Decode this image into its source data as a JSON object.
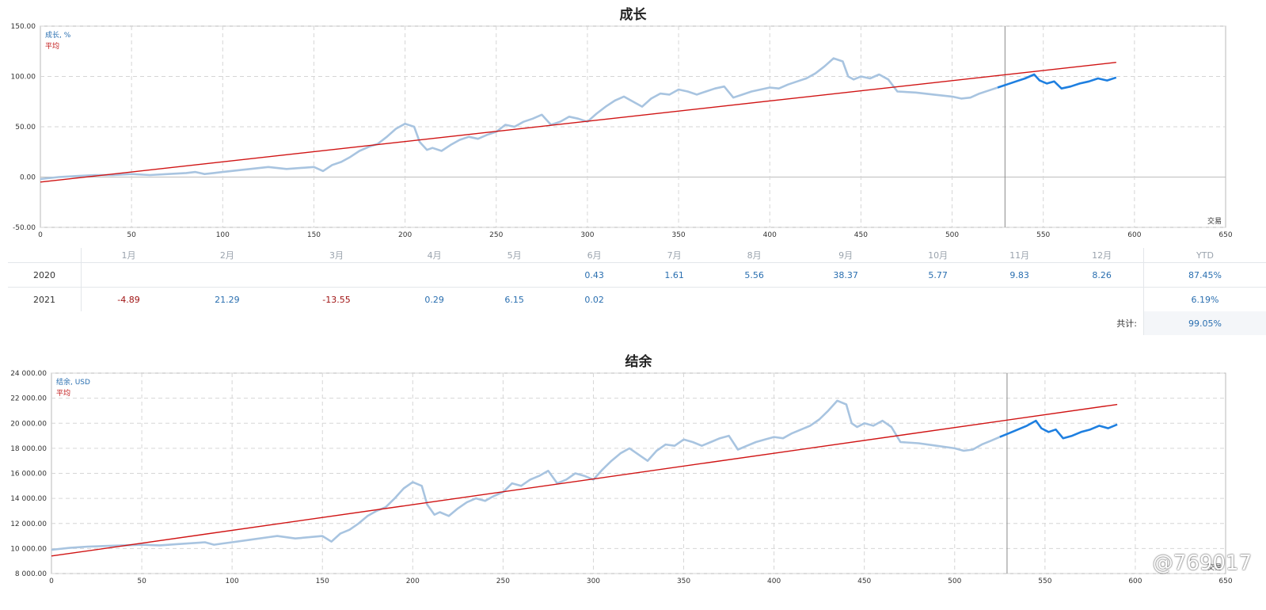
{
  "chart_data": [
    {
      "type": "line",
      "title": "成长",
      "legend": [
        "成长, %",
        "平均"
      ],
      "xlabel": "交易",
      "xlim": [
        0,
        650
      ],
      "ylim": [
        -50,
        150
      ],
      "xticks": [
        0,
        50,
        100,
        150,
        200,
        250,
        300,
        350,
        400,
        450,
        500,
        550,
        600,
        650
      ],
      "yticks": [
        "-50.00",
        "0.00",
        "50.00",
        "100.00",
        "150.00"
      ],
      "split_x": 529,
      "series": [
        {
          "name": "成长, %",
          "color": "#a8c4e0",
          "highlight_color": "#1e7fe0",
          "x": [
            0,
            10,
            20,
            30,
            40,
            50,
            60,
            70,
            80,
            85,
            90,
            95,
            100,
            110,
            120,
            125,
            135,
            150,
            155,
            160,
            165,
            170,
            175,
            180,
            185,
            190,
            195,
            200,
            205,
            208,
            212,
            215,
            220,
            225,
            230,
            235,
            240,
            245,
            250,
            255,
            260,
            265,
            270,
            275,
            280,
            285,
            290,
            295,
            300,
            305,
            310,
            315,
            320,
            325,
            330,
            335,
            340,
            345,
            350,
            355,
            360,
            365,
            370,
            375,
            380,
            385,
            390,
            395,
            400,
            405,
            410,
            415,
            420,
            425,
            430,
            435,
            440,
            443,
            446,
            450,
            455,
            460,
            465,
            470,
            480,
            490,
            500,
            505,
            510,
            515,
            520,
            525,
            530,
            535,
            540,
            545,
            548,
            552,
            556,
            560,
            565,
            570,
            575,
            580,
            585,
            590
          ],
          "y": [
            -2,
            0,
            1,
            2,
            2,
            3,
            2,
            3,
            4,
            5,
            3,
            4,
            5,
            7,
            9,
            10,
            8,
            10,
            6,
            12,
            15,
            20,
            26,
            30,
            33,
            40,
            48,
            53,
            50,
            35,
            27,
            29,
            26,
            32,
            37,
            40,
            38,
            42,
            45,
            52,
            50,
            55,
            58,
            62,
            52,
            55,
            60,
            58,
            55,
            63,
            70,
            76,
            80,
            75,
            70,
            78,
            83,
            82,
            87,
            85,
            82,
            85,
            88,
            90,
            79,
            82,
            85,
            87,
            89,
            88,
            92,
            95,
            98,
            103,
            110,
            118,
            115,
            100,
            97,
            100,
            98,
            102,
            97,
            85,
            84,
            82,
            80,
            78,
            79,
            83,
            86,
            89,
            92,
            95,
            98,
            102,
            96,
            93,
            95,
            88,
            90,
            93,
            95,
            98,
            96,
            99
          ]
        },
        {
          "name": "平均",
          "color": "#d01414",
          "x": [
            0,
            590
          ],
          "y": [
            -5,
            114
          ]
        }
      ]
    },
    {
      "type": "line",
      "title": "结余",
      "legend": [
        "结余, USD",
        "平均"
      ],
      "xlabel": "交易",
      "xlim": [
        0,
        650
      ],
      "ylim": [
        8000,
        24000
      ],
      "xticks": [
        0,
        50,
        100,
        150,
        200,
        250,
        300,
        350,
        400,
        450,
        500,
        550,
        600,
        650
      ],
      "yticks": [
        "8 000.00",
        "10 000.00",
        "12 000.00",
        "14 000.00",
        "16 000.00",
        "18 000.00",
        "20 000.00",
        "22 000.00",
        "24 000.00"
      ],
      "split_x": 529,
      "series": [
        {
          "name": "结余, USD",
          "color": "#a8c4e0",
          "highlight_color": "#1e7fe0",
          "x": [
            0,
            10,
            20,
            30,
            40,
            50,
            60,
            70,
            80,
            85,
            90,
            95,
            100,
            110,
            120,
            125,
            135,
            150,
            155,
            160,
            165,
            170,
            175,
            180,
            185,
            190,
            195,
            200,
            205,
            208,
            212,
            215,
            220,
            225,
            230,
            235,
            240,
            245,
            250,
            255,
            260,
            265,
            270,
            275,
            280,
            285,
            290,
            295,
            300,
            305,
            310,
            315,
            320,
            325,
            330,
            335,
            340,
            345,
            350,
            355,
            360,
            365,
            370,
            375,
            380,
            385,
            390,
            395,
            400,
            405,
            410,
            415,
            420,
            425,
            430,
            435,
            440,
            443,
            446,
            450,
            455,
            460,
            465,
            470,
            480,
            490,
            500,
            505,
            510,
            515,
            520,
            525,
            530,
            535,
            540,
            545,
            548,
            552,
            556,
            560,
            565,
            570,
            575,
            580,
            585,
            590
          ],
          "y": [
            9900,
            10050,
            10150,
            10200,
            10250,
            10300,
            10250,
            10350,
            10450,
            10500,
            10300,
            10400,
            10500,
            10700,
            10900,
            11000,
            10800,
            11000,
            10550,
            11200,
            11500,
            12000,
            12600,
            13000,
            13300,
            14000,
            14800,
            15300,
            15000,
            13500,
            12700,
            12900,
            12600,
            13200,
            13700,
            14000,
            13800,
            14200,
            14500,
            15200,
            15000,
            15500,
            15800,
            16200,
            15200,
            15500,
            16000,
            15800,
            15500,
            16300,
            17000,
            17600,
            18000,
            17500,
            17000,
            17800,
            18300,
            18200,
            18700,
            18500,
            18200,
            18500,
            18800,
            19000,
            17900,
            18200,
            18500,
            18700,
            18900,
            18800,
            19200,
            19500,
            19800,
            20300,
            21000,
            21800,
            21500,
            20000,
            19700,
            20000,
            19800,
            20200,
            19700,
            18500,
            18400,
            18200,
            18000,
            17800,
            17900,
            18300,
            18600,
            18900,
            19200,
            19500,
            19800,
            20200,
            19600,
            19300,
            19500,
            18800,
            19000,
            19300,
            19500,
            19800,
            19600,
            19900
          ]
        },
        {
          "name": "平均",
          "color": "#d01414",
          "x": [
            0,
            590
          ],
          "y": [
            9400,
            21500
          ]
        }
      ]
    }
  ],
  "table": {
    "months": [
      "1月",
      "2月",
      "3月",
      "4月",
      "5月",
      "6月",
      "7月",
      "8月",
      "9月",
      "10月",
      "11月",
      "12月"
    ],
    "ytd_label": "YTD",
    "rows": [
      {
        "year": "2020",
        "values": [
          "",
          "",
          "",
          "",
          "",
          "0.43",
          "1.61",
          "5.56",
          "38.37",
          "5.77",
          "9.83",
          "8.26"
        ],
        "ytd": "87.45%"
      },
      {
        "year": "2021",
        "values": [
          "-4.89",
          "21.29",
          "-13.55",
          "0.29",
          "6.15",
          "0.02",
          "",
          "",
          "",
          "",
          "",
          ""
        ],
        "ytd": "6.19%"
      }
    ],
    "total_label": "共计:",
    "total_value": "99.05%"
  },
  "watermark": "@769017"
}
